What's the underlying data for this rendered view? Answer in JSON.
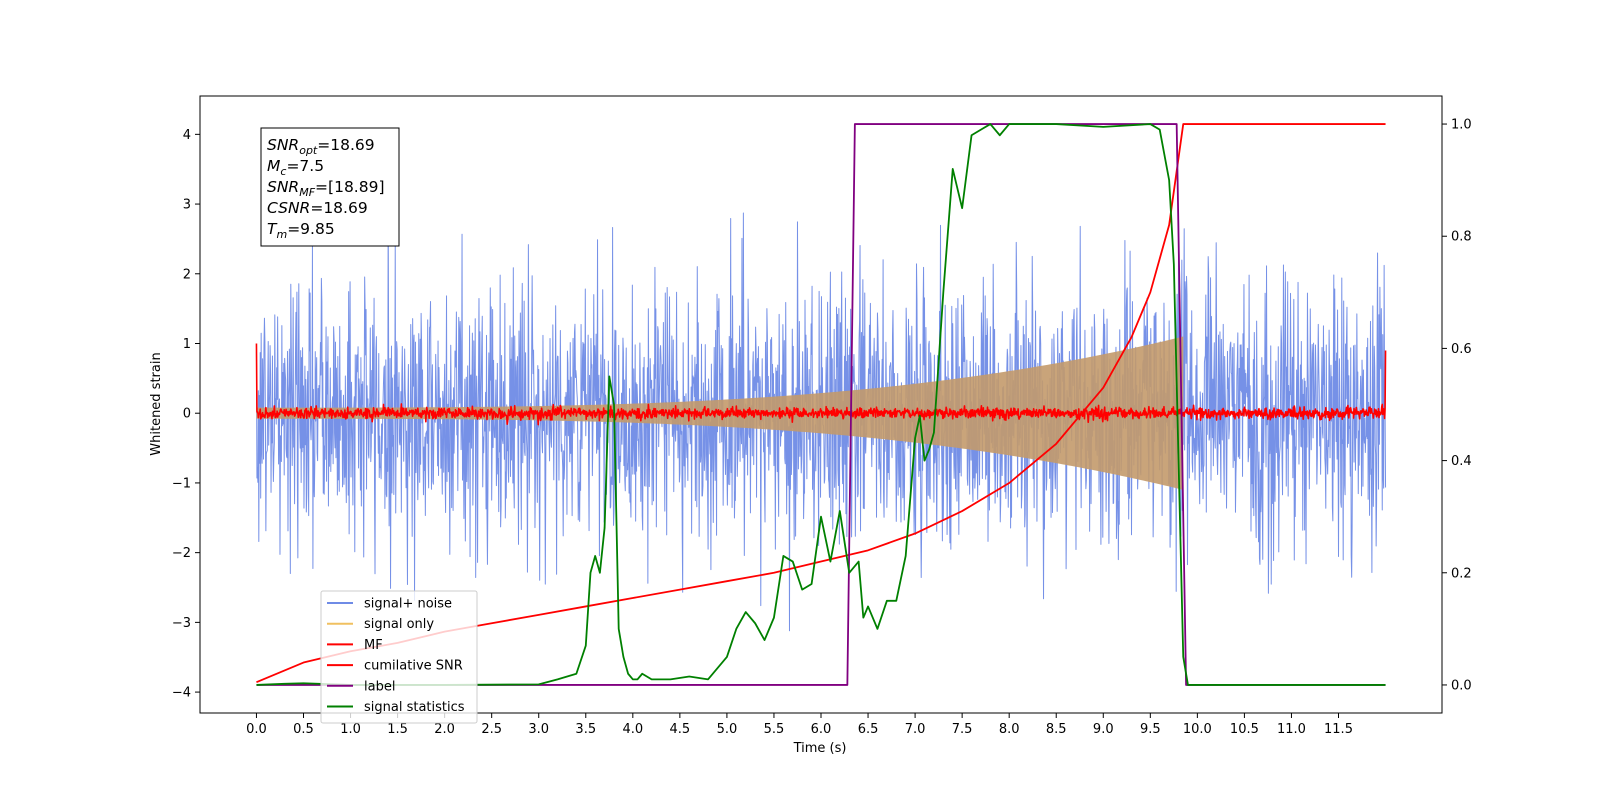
{
  "chart_data": {
    "type": "line",
    "xlabel": "Time (s)",
    "ylabel": "Whitened strain",
    "xlim": [
      -0.6,
      12.6
    ],
    "ylim_left": [
      -4.3,
      4.55
    ],
    "ylim_right": [
      -0.05,
      1.05
    ],
    "x_ticks": [
      "0.0",
      "0.5",
      "1.0",
      "1.5",
      "2.0",
      "2.5",
      "3.0",
      "3.5",
      "4.0",
      "4.5",
      "5.0",
      "5.5",
      "6.0",
      "6.5",
      "7.0",
      "7.5",
      "8.0",
      "8.5",
      "9.0",
      "9.5",
      "10.0",
      "10.5",
      "11.0",
      "11.5"
    ],
    "y_ticks_left": [
      "4",
      "3",
      "2",
      "1",
      "0",
      "−1",
      "−2",
      "−3",
      "−4"
    ],
    "y_ticks_right": [
      "1.0",
      "0.8",
      "0.6",
      "0.4",
      "0.2",
      "0.0"
    ],
    "info_box": {
      "lines": [
        {
          "sym": "SNR",
          "sub": "opt",
          "val": "=18.69"
        },
        {
          "sym": "M",
          "sub": "c",
          "val": "=7.5"
        },
        {
          "sym": "SNR",
          "sub": "MF",
          "val": "=[18.89]"
        },
        {
          "sym": "CSNR",
          "sub": "",
          "val": "=18.69"
        },
        {
          "sym": "T",
          "sub": "m",
          "val": "=9.85"
        }
      ]
    },
    "series": [
      {
        "name": "signal+ noise",
        "color": "#6f8be6",
        "axis": "left",
        "kind": "noise",
        "t_start": 0.0,
        "t_end": 12.0,
        "std": 0.95
      },
      {
        "name": "signal only",
        "color": "#f0c060",
        "axis": "left",
        "kind": "chirp_envelope",
        "t_start": 0.0,
        "t_end": 9.85,
        "amplitude_start": 0.08,
        "amplitude_end": 1.1
      },
      {
        "name": "MF",
        "color": "#ff0000",
        "axis": "left",
        "kind": "noise",
        "t_start": 0.0,
        "t_end": 12.0,
        "std": 0.04,
        "edge_values": [
          1.0,
          0.9
        ]
      },
      {
        "name": "cumilative SNR",
        "color": "#ff0000",
        "axis": "right",
        "x": [
          0.0,
          0.5,
          1.0,
          1.5,
          2.0,
          2.5,
          3.0,
          3.5,
          4.0,
          4.5,
          5.0,
          5.5,
          6.0,
          6.5,
          7.0,
          7.5,
          8.0,
          8.5,
          9.0,
          9.3,
          9.5,
          9.7,
          9.85,
          12.0
        ],
        "y": [
          0.005,
          0.04,
          0.06,
          0.075,
          0.095,
          0.11,
          0.125,
          0.14,
          0.155,
          0.17,
          0.185,
          0.2,
          0.22,
          0.24,
          0.27,
          0.31,
          0.36,
          0.43,
          0.53,
          0.62,
          0.7,
          0.82,
          1.0,
          1.0
        ]
      },
      {
        "name": "label",
        "color": "#800080",
        "axis": "right",
        "x": [
          0.0,
          6.28,
          6.36,
          9.78,
          9.88,
          12.0
        ],
        "y": [
          0.0,
          0.0,
          1.0,
          1.0,
          0.0,
          0.0
        ]
      },
      {
        "name": "signal statistics",
        "color": "#008000",
        "axis": "right",
        "x": [
          0.0,
          0.3,
          0.5,
          1.0,
          2.0,
          3.0,
          3.2,
          3.4,
          3.5,
          3.55,
          3.6,
          3.65,
          3.7,
          3.75,
          3.8,
          3.85,
          3.9,
          3.95,
          4.0,
          4.05,
          4.1,
          4.2,
          4.4,
          4.6,
          4.8,
          5.0,
          5.1,
          5.2,
          5.3,
          5.4,
          5.5,
          5.6,
          5.7,
          5.8,
          5.9,
          6.0,
          6.1,
          6.2,
          6.3,
          6.4,
          6.45,
          6.5,
          6.6,
          6.7,
          6.8,
          6.9,
          7.0,
          7.05,
          7.1,
          7.15,
          7.2,
          7.3,
          7.4,
          7.5,
          7.6,
          7.7,
          7.8,
          7.9,
          8.0,
          8.5,
          9.0,
          9.5,
          9.6,
          9.7,
          9.75,
          9.8,
          9.85,
          9.9,
          12.0
        ],
        "y": [
          0.0,
          0.002,
          0.003,
          0.0,
          0.0,
          0.001,
          0.01,
          0.02,
          0.07,
          0.2,
          0.23,
          0.2,
          0.28,
          0.55,
          0.5,
          0.1,
          0.05,
          0.02,
          0.01,
          0.01,
          0.02,
          0.01,
          0.01,
          0.015,
          0.01,
          0.05,
          0.1,
          0.13,
          0.11,
          0.08,
          0.12,
          0.23,
          0.22,
          0.17,
          0.18,
          0.3,
          0.22,
          0.31,
          0.2,
          0.22,
          0.12,
          0.14,
          0.1,
          0.15,
          0.15,
          0.23,
          0.44,
          0.48,
          0.4,
          0.42,
          0.45,
          0.7,
          0.92,
          0.85,
          0.98,
          0.99,
          1.0,
          0.98,
          1.0,
          1.0,
          0.995,
          1.0,
          0.99,
          0.9,
          0.75,
          0.4,
          0.05,
          0.0,
          0.0
        ]
      }
    ]
  }
}
